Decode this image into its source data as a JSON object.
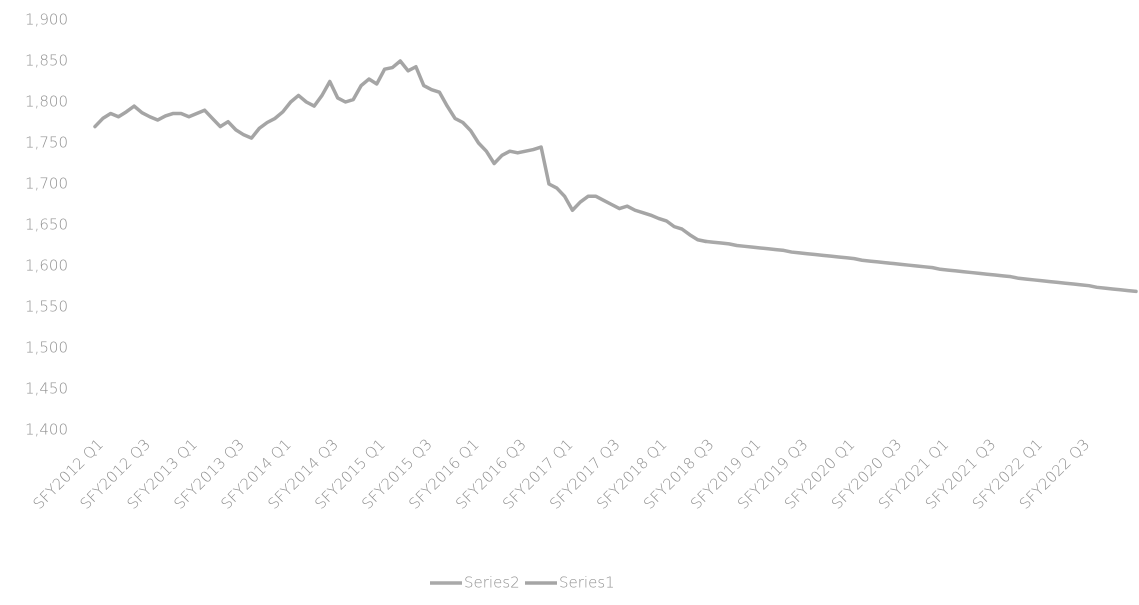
{
  "chart_data": {
    "type": "line",
    "categories": [
      "SFY2012 Q1",
      null,
      null,
      null,
      null,
      null,
      "SFY2012 Q3",
      null,
      null,
      null,
      null,
      null,
      "SFY2013 Q1",
      null,
      null,
      null,
      null,
      null,
      "SFY2013 Q3",
      null,
      null,
      null,
      null,
      null,
      "SFY2014 Q1",
      null,
      null,
      null,
      null,
      null,
      "SFY2014 Q3",
      null,
      null,
      null,
      null,
      null,
      "SFY2015 Q1",
      null,
      null,
      null,
      null,
      null,
      "SFY2015 Q3",
      null,
      null,
      null,
      null,
      null,
      "SFY2016 Q1",
      null,
      null,
      null,
      null,
      null,
      "SFY2016 Q3",
      null,
      null,
      null,
      null,
      null,
      "SFY2017 Q1",
      null,
      null,
      null,
      null,
      null,
      "SFY2017 Q3",
      null,
      null,
      null,
      null,
      null,
      "SFY2018 Q1",
      null,
      null,
      null,
      null,
      null,
      "SFY2018 Q3",
      null,
      null,
      null,
      null,
      null,
      "SFY2019 Q1",
      null,
      null,
      null,
      null,
      null,
      "SFY2019 Q3",
      null,
      null,
      null,
      null,
      null,
      "SFY2020 Q1",
      null,
      null,
      null,
      null,
      null,
      "SFY2020 Q3",
      null,
      null,
      null,
      null,
      null,
      "SFY2021 Q1",
      null,
      null,
      null,
      null,
      null,
      "SFY2021 Q3",
      null,
      null,
      null,
      null,
      null,
      "SFY2022 Q1",
      null,
      null,
      null,
      null,
      null,
      "SFY2022 Q3",
      null,
      null,
      null,
      null,
      null,
      null,
      null
    ],
    "series": [
      {
        "name": "Series2",
        "color": "#a9a9a9",
        "values": [
          null,
          null,
          null,
          null,
          null,
          null,
          null,
          null,
          null,
          null,
          null,
          null,
          null,
          null,
          null,
          null,
          null,
          null,
          null,
          null,
          null,
          null,
          null,
          null,
          null,
          null,
          null,
          null,
          null,
          null,
          null,
          null,
          null,
          null,
          null,
          null,
          null,
          null,
          null,
          null,
          null,
          null,
          null,
          null,
          null,
          null,
          null,
          null,
          null,
          null,
          null,
          null,
          null,
          null,
          null,
          null,
          null,
          null,
          null,
          null,
          null,
          null,
          null,
          null,
          null,
          null,
          null,
          null,
          null,
          null,
          null,
          null,
          null,
          null,
          null,
          null,
          null,
          null,
          1630,
          1629,
          1628,
          1627,
          1625,
          1624,
          1623,
          1622,
          1621,
          1620,
          1619,
          1617,
          1616,
          1615,
          1614,
          1613,
          1612,
          1611,
          1610,
          1609,
          1607,
          1606,
          1605,
          1604,
          1603,
          1602,
          1601,
          1600,
          1599,
          1598,
          1596,
          1595,
          1594,
          1593,
          1592,
          1591,
          1590,
          1589,
          1588,
          1587,
          1585,
          1584,
          1583,
          1582,
          1581,
          1580,
          1579,
          1578,
          1577,
          1576,
          1574,
          1573,
          1572,
          1571,
          1570,
          1569
        ]
      },
      {
        "name": "Series1",
        "color": "#a5a5a5",
        "values": [
          1770,
          1780,
          1786,
          1782,
          1788,
          1795,
          1787,
          1782,
          1778,
          1783,
          1786,
          1786,
          1782,
          1786,
          1790,
          1780,
          1770,
          1776,
          1766,
          1760,
          1756,
          1768,
          1775,
          1780,
          1788,
          1800,
          1808,
          1800,
          1795,
          1808,
          1825,
          1805,
          1800,
          1803,
          1820,
          1828,
          1822,
          1840,
          1842,
          1850,
          1838,
          1843,
          1820,
          1815,
          1812,
          1795,
          1780,
          1775,
          1765,
          1750,
          1740,
          1725,
          1735,
          1740,
          1738,
          1740,
          1742,
          1745,
          1700,
          1695,
          1685,
          1668,
          1678,
          1685,
          1685,
          1680,
          1675,
          1670,
          1673,
          1668,
          1665,
          1662,
          1658,
          1655,
          1648,
          1645,
          1638,
          1632,
          1630,
          null,
          null,
          null,
          null,
          null,
          null,
          null,
          null,
          null,
          null,
          null,
          null,
          null,
          null,
          null,
          null,
          null,
          null,
          null,
          null,
          null,
          null,
          null,
          null,
          null,
          null,
          null,
          null,
          null,
          null,
          null,
          null,
          null,
          null,
          null,
          null,
          null,
          null,
          null,
          null,
          null,
          null,
          null,
          null,
          null,
          null,
          null,
          null,
          null,
          null,
          null,
          null,
          null,
          null,
          null
        ]
      }
    ],
    "ylim": [
      1400,
      1900
    ],
    "yticks": [
      {
        "value": 1400,
        "label": "1,400"
      },
      {
        "value": 1450,
        "label": "1,450"
      },
      {
        "value": 1500,
        "label": "1,500"
      },
      {
        "value": 1550,
        "label": "1,550"
      },
      {
        "value": 1600,
        "label": "1,600"
      },
      {
        "value": 1650,
        "label": "1,650"
      },
      {
        "value": 1700,
        "label": "1,700"
      },
      {
        "value": 1750,
        "label": "1,750"
      },
      {
        "value": 1800,
        "label": "1,800"
      },
      {
        "value": 1850,
        "label": "1,850"
      },
      {
        "value": 1900,
        "label": "1,900"
      }
    ],
    "grid": false,
    "legend": "bottom"
  }
}
